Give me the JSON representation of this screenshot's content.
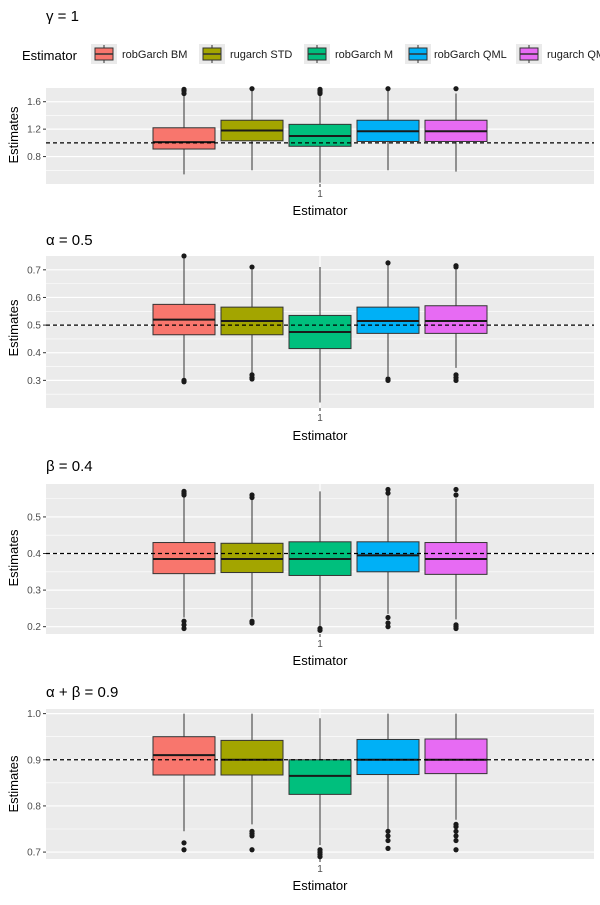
{
  "legend": {
    "title": "Estimator",
    "entries": [
      {
        "label": "robGarch BM",
        "color": "#F8766D"
      },
      {
        "label": "rugarch STD",
        "color": "#A3A500"
      },
      {
        "label": "robGarch M",
        "color": "#00BF7D"
      },
      {
        "label": "robGarch QML",
        "color": "#00B0F6"
      },
      {
        "label": "rugarch QML",
        "color": "#E76BF3"
      }
    ]
  },
  "chart_data": [
    {
      "type": "box",
      "title": "γ = 1",
      "xlabel": "Estimator",
      "ylabel": "Estimates",
      "x_tick": "1",
      "reference_line": 1.0,
      "ylim": [
        0.4,
        1.8
      ],
      "yticks": [
        0.8,
        1.2,
        1.6
      ],
      "ytick_labels": [
        "0.8",
        "1.2",
        "1.6"
      ],
      "series": [
        {
          "name": "robGarch BM",
          "whisker_low": 0.54,
          "q1": 0.91,
          "median": 1.01,
          "q3": 1.22,
          "whisker_high": 1.7,
          "outliers": [
            1.72,
            1.76,
            1.78
          ]
        },
        {
          "name": "rugarch STD",
          "whisker_low": 0.6,
          "q1": 1.03,
          "median": 1.18,
          "q3": 1.33,
          "whisker_high": 1.78,
          "outliers": [
            1.79
          ]
        },
        {
          "name": "robGarch M",
          "whisker_low": 0.42,
          "q1": 0.95,
          "median": 1.1,
          "q3": 1.27,
          "whisker_high": 1.7,
          "outliers": [
            1.72,
            1.74,
            1.76,
            1.78
          ]
        },
        {
          "name": "robGarch QML",
          "whisker_low": 0.6,
          "q1": 1.02,
          "median": 1.17,
          "q3": 1.33,
          "whisker_high": 1.78,
          "outliers": [
            1.79
          ]
        },
        {
          "name": "rugarch QML",
          "whisker_low": 0.58,
          "q1": 1.02,
          "median": 1.17,
          "q3": 1.33,
          "whisker_high": 1.72,
          "outliers": [
            1.79
          ]
        }
      ]
    },
    {
      "type": "box",
      "title": "α = 0.5",
      "xlabel": "Estimator",
      "ylabel": "Estimates",
      "x_tick": "1",
      "reference_line": 0.5,
      "ylim": [
        0.2,
        0.75
      ],
      "yticks": [
        0.3,
        0.4,
        0.5,
        0.6,
        0.7
      ],
      "ytick_labels": [
        "0.3",
        "0.4",
        "0.5",
        "0.6",
        "0.7"
      ],
      "series": [
        {
          "name": "robGarch BM",
          "whisker_low": 0.305,
          "q1": 0.465,
          "median": 0.52,
          "q3": 0.575,
          "whisker_high": 0.74,
          "outliers": [
            0.295,
            0.3,
            0.75
          ]
        },
        {
          "name": "rugarch STD",
          "whisker_low": 0.325,
          "q1": 0.465,
          "median": 0.515,
          "q3": 0.565,
          "whisker_high": 0.7,
          "outliers": [
            0.305,
            0.31,
            0.32,
            0.71
          ]
        },
        {
          "name": "robGarch M",
          "whisker_low": 0.22,
          "q1": 0.415,
          "median": 0.475,
          "q3": 0.535,
          "whisker_high": 0.71,
          "outliers": []
        },
        {
          "name": "robGarch QML",
          "whisker_low": 0.315,
          "q1": 0.47,
          "median": 0.515,
          "q3": 0.565,
          "whisker_high": 0.72,
          "outliers": [
            0.3,
            0.305,
            0.725
          ]
        },
        {
          "name": "rugarch QML",
          "whisker_low": 0.345,
          "q1": 0.47,
          "median": 0.515,
          "q3": 0.57,
          "whisker_high": 0.7,
          "outliers": [
            0.3,
            0.31,
            0.32,
            0.71,
            0.715
          ]
        }
      ]
    },
    {
      "type": "box",
      "title": "β = 0.4",
      "xlabel": "Estimator",
      "ylabel": "Estimates",
      "x_tick": "1",
      "reference_line": 0.4,
      "ylim": [
        0.18,
        0.59
      ],
      "yticks": [
        0.2,
        0.3,
        0.4,
        0.5
      ],
      "ytick_labels": [
        "0.2",
        "0.3",
        "0.4",
        "0.5"
      ],
      "series": [
        {
          "name": "robGarch BM",
          "whisker_low": 0.225,
          "q1": 0.345,
          "median": 0.385,
          "q3": 0.43,
          "whisker_high": 0.555,
          "outliers": [
            0.195,
            0.205,
            0.215,
            0.56,
            0.565,
            0.57
          ]
        },
        {
          "name": "rugarch STD",
          "whisker_low": 0.225,
          "q1": 0.348,
          "median": 0.385,
          "q3": 0.428,
          "whisker_high": 0.55,
          "outliers": [
            0.21,
            0.215,
            0.553,
            0.56
          ]
        },
        {
          "name": "robGarch M",
          "whisker_low": 0.2,
          "q1": 0.34,
          "median": 0.385,
          "q3": 0.432,
          "whisker_high": 0.57,
          "outliers": [
            0.19,
            0.195
          ]
        },
        {
          "name": "robGarch QML",
          "whisker_low": 0.235,
          "q1": 0.35,
          "median": 0.395,
          "q3": 0.432,
          "whisker_high": 0.56,
          "outliers": [
            0.2,
            0.21,
            0.225,
            0.565,
            0.575
          ]
        },
        {
          "name": "rugarch QML",
          "whisker_low": 0.22,
          "q1": 0.343,
          "median": 0.385,
          "q3": 0.43,
          "whisker_high": 0.55,
          "outliers": [
            0.195,
            0.2,
            0.205,
            0.56,
            0.575
          ]
        }
      ]
    },
    {
      "type": "box",
      "title": "α + β = 0.9",
      "xlabel": "Estimator",
      "ylabel": "Estimates",
      "x_tick": "1",
      "reference_line": 0.9,
      "ylim": [
        0.685,
        1.01
      ],
      "yticks": [
        0.7,
        0.8,
        0.9,
        1.0
      ],
      "ytick_labels": [
        "0.7",
        "0.8",
        "0.9",
        "1.0"
      ],
      "series": [
        {
          "name": "robGarch BM",
          "whisker_low": 0.745,
          "q1": 0.867,
          "median": 0.91,
          "q3": 0.95,
          "whisker_high": 1.0,
          "outliers": [
            0.705,
            0.72
          ]
        },
        {
          "name": "rugarch STD",
          "whisker_low": 0.76,
          "q1": 0.867,
          "median": 0.9,
          "q3": 0.942,
          "whisker_high": 1.0,
          "outliers": [
            0.705,
            0.735,
            0.74,
            0.745
          ]
        },
        {
          "name": "robGarch M",
          "whisker_low": 0.715,
          "q1": 0.825,
          "median": 0.865,
          "q3": 0.9,
          "whisker_high": 0.99,
          "outliers": [
            0.69,
            0.695,
            0.7,
            0.705
          ]
        },
        {
          "name": "robGarch QML",
          "whisker_low": 0.75,
          "q1": 0.868,
          "median": 0.9,
          "q3": 0.944,
          "whisker_high": 1.0,
          "outliers": [
            0.708,
            0.725,
            0.735,
            0.745
          ]
        },
        {
          "name": "rugarch QML",
          "whisker_low": 0.77,
          "q1": 0.87,
          "median": 0.9,
          "q3": 0.945,
          "whisker_high": 1.0,
          "outliers": [
            0.705,
            0.725,
            0.735,
            0.745,
            0.755,
            0.76
          ]
        }
      ]
    }
  ]
}
